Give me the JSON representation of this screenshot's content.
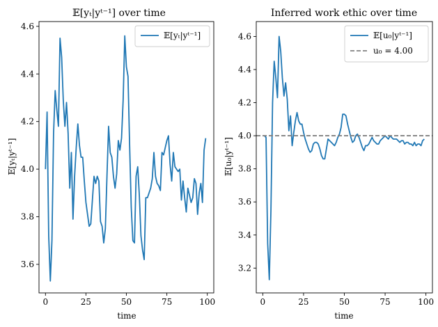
{
  "chart_data": [
    {
      "type": "line",
      "title": "𝔼[yₜ|yᵗ⁻¹] over time",
      "xlabel": "time",
      "ylabel": "𝔼[yₜ|yᵗ⁻¹]",
      "xlim": [
        -4,
        104
      ],
      "ylim": [
        3.48,
        4.62
      ],
      "xticks": [
        0,
        25,
        50,
        75,
        100
      ],
      "yticks": [
        3.6,
        3.8,
        4.0,
        4.2,
        4.4,
        4.6
      ],
      "ytick_labels": [
        "3.6",
        "3.8",
        "4.0",
        "4.2",
        "4.4",
        "4.6"
      ],
      "legend_position": "upper right",
      "series": [
        {
          "name": "𝔼[yₜ|yᵗ⁻¹]",
          "color": "#1f77b4",
          "style": "solid",
          "x": [
            0,
            1,
            2,
            3,
            4,
            5,
            6,
            7,
            8,
            9,
            10,
            11,
            12,
            13,
            14,
            15,
            16,
            17,
            18,
            19,
            20,
            21,
            22,
            23,
            24,
            25,
            26,
            27,
            28,
            29,
            30,
            31,
            32,
            33,
            34,
            35,
            36,
            37,
            38,
            39,
            40,
            41,
            42,
            43,
            44,
            45,
            46,
            47,
            48,
            49,
            50,
            51,
            52,
            53,
            54,
            55,
            56,
            57,
            58,
            59,
            60,
            61,
            62,
            63,
            64,
            65,
            66,
            67,
            68,
            69,
            70,
            71,
            72,
            73,
            74,
            75,
            76,
            77,
            78,
            79,
            80,
            81,
            82,
            83,
            84,
            85,
            86,
            87,
            88,
            89,
            90,
            91,
            92,
            93,
            94,
            95,
            96,
            97,
            98,
            99
          ],
          "values": [
            4.0,
            4.24,
            3.72,
            3.53,
            3.7,
            4.15,
            4.33,
            4.25,
            4.18,
            4.55,
            4.47,
            4.29,
            4.18,
            4.28,
            4.15,
            3.92,
            4.07,
            3.79,
            3.97,
            4.09,
            4.19,
            4.1,
            4.05,
            4.05,
            3.95,
            3.86,
            3.81,
            3.76,
            3.77,
            3.87,
            3.97,
            3.94,
            3.97,
            3.95,
            3.78,
            3.76,
            3.69,
            3.75,
            3.97,
            4.18,
            4.07,
            4.05,
            3.97,
            3.92,
            3.98,
            4.12,
            4.08,
            4.13,
            4.29,
            4.56,
            4.43,
            4.39,
            4.1,
            3.84,
            3.7,
            3.69,
            3.97,
            4.01,
            3.89,
            3.72,
            3.66,
            3.62,
            3.88,
            3.88,
            3.9,
            3.92,
            3.96,
            4.07,
            3.97,
            3.94,
            3.93,
            3.91,
            4.07,
            4.06,
            4.09,
            4.12,
            4.14,
            4.02,
            3.95,
            4.07,
            4.01,
            4.0,
            3.99,
            4.0,
            3.87,
            3.95,
            3.88,
            3.82,
            3.92,
            3.89,
            3.86,
            3.88,
            3.96,
            3.94,
            3.81,
            3.9,
            3.94,
            3.86,
            4.08,
            4.13
          ]
        }
      ]
    },
    {
      "type": "line",
      "title": "Inferred work ethic over time",
      "xlabel": "time",
      "ylabel": "𝔼[u₀|yᵗ⁻¹]",
      "xlim": [
        -4,
        104
      ],
      "ylim": [
        3.05,
        4.69
      ],
      "xticks": [
        0,
        25,
        50,
        75,
        100
      ],
      "yticks": [
        3.2,
        3.4,
        3.6,
        3.8,
        4.0,
        4.2,
        4.4,
        4.6
      ],
      "ytick_labels": [
        "3.2",
        "3.4",
        "3.6",
        "3.8",
        "4.0",
        "4.2",
        "4.4",
        "4.6"
      ],
      "legend_position": "upper right",
      "series": [
        {
          "name": "𝔼[u₀|yᵗ⁻¹]",
          "color": "#1f77b4",
          "style": "solid",
          "x": [
            1,
            2,
            3,
            4,
            5,
            6,
            7,
            8,
            9,
            10,
            11,
            12,
            13,
            14,
            15,
            16,
            17,
            18,
            19,
            20,
            21,
            22,
            23,
            24,
            25,
            26,
            27,
            28,
            29,
            30,
            31,
            32,
            33,
            34,
            35,
            36,
            37,
            38,
            39,
            40,
            41,
            42,
            43,
            44,
            45,
            46,
            47,
            48,
            49,
            50,
            51,
            52,
            53,
            54,
            55,
            56,
            57,
            58,
            59,
            60,
            61,
            62,
            63,
            64,
            65,
            66,
            67,
            68,
            69,
            70,
            71,
            72,
            73,
            74,
            75,
            76,
            77,
            78,
            79,
            80,
            81,
            82,
            83,
            84,
            85,
            86,
            87,
            88,
            89,
            90,
            91,
            92,
            93,
            94,
            95,
            96,
            97,
            98,
            99
          ],
          "values": [
            4.0,
            3.99,
            3.35,
            3.13,
            3.55,
            4.2,
            4.45,
            4.35,
            4.23,
            4.6,
            4.51,
            4.35,
            4.24,
            4.32,
            4.22,
            4.03,
            4.12,
            3.94,
            4.02,
            4.09,
            4.14,
            4.09,
            4.07,
            4.07,
            4.02,
            3.98,
            3.95,
            3.92,
            3.9,
            3.91,
            3.95,
            3.96,
            3.96,
            3.95,
            3.92,
            3.88,
            3.86,
            3.86,
            3.92,
            3.98,
            3.97,
            3.96,
            3.95,
            3.94,
            3.96,
            3.99,
            4.01,
            4.05,
            4.13,
            4.13,
            4.12,
            4.07,
            4.03,
            3.99,
            3.96,
            3.97,
            4.0,
            4.01,
            3.99,
            3.96,
            3.93,
            3.91,
            3.94,
            3.94,
            3.95,
            3.97,
            3.99,
            3.97,
            3.96,
            3.95,
            3.95,
            3.97,
            3.98,
            3.99,
            4.0,
            3.99,
            3.98,
            4.0,
            3.99,
            3.98,
            3.98,
            3.98,
            3.97,
            3.96,
            3.97,
            3.97,
            3.95,
            3.96,
            3.96,
            3.95,
            3.95,
            3.94,
            3.96,
            3.94,
            3.95,
            3.95,
            3.94,
            3.97,
            3.98
          ]
        },
        {
          "name": "u₀ = 4.00",
          "color": "#808080",
          "style": "dashed",
          "type": "hline",
          "value": 4.0
        }
      ]
    }
  ]
}
